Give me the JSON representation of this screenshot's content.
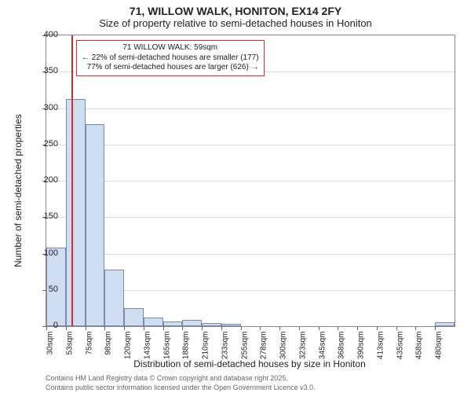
{
  "title_line1": "71, WILLOW WALK, HONITON, EX14 2FY",
  "title_line2": "Size of property relative to semi-detached houses in Honiton",
  "xlabel": "Distribution of semi-detached houses by size in Honiton",
  "ylabel": "Number of semi-detached properties",
  "credits_line1": "Contains HM Land Registry data © Crown copyright and database right 2025.",
  "credits_line2": "Contains public sector information licensed under the Open Government Licence v3.0.",
  "chart": {
    "type": "bar",
    "background": "#ffffff",
    "grid_color": "#dddddd",
    "axis_color": "#888888",
    "bar_fill": "#cfddf2",
    "bar_border": "#7a8aa8",
    "refline_color": "#d82a2a",
    "annot_border": "#d82a2a",
    "ylim": [
      0,
      400
    ],
    "ytick_step": 50,
    "x_start": 30,
    "x_step": 22.5,
    "x_labels": [
      "30sqm",
      "53sqm",
      "75sqm",
      "98sqm",
      "120sqm",
      "143sqm",
      "165sqm",
      "188sqm",
      "210sqm",
      "233sqm",
      "255sqm",
      "278sqm",
      "300sqm",
      "323sqm",
      "345sqm",
      "368sqm",
      "390sqm",
      "413sqm",
      "435sqm",
      "458sqm",
      "480sqm"
    ],
    "values": [
      108,
      312,
      278,
      78,
      25,
      12,
      6,
      9,
      4,
      3,
      0,
      0,
      0,
      0,
      0,
      0,
      0,
      0,
      0,
      0,
      5
    ],
    "refline_x_value": 59,
    "annot_line1": "71 WILLOW WALK: 59sqm",
    "annot_line2": "← 22% of semi-detached houses are smaller (177)",
    "annot_line3": "77% of semi-detached houses are larger (626) →"
  }
}
